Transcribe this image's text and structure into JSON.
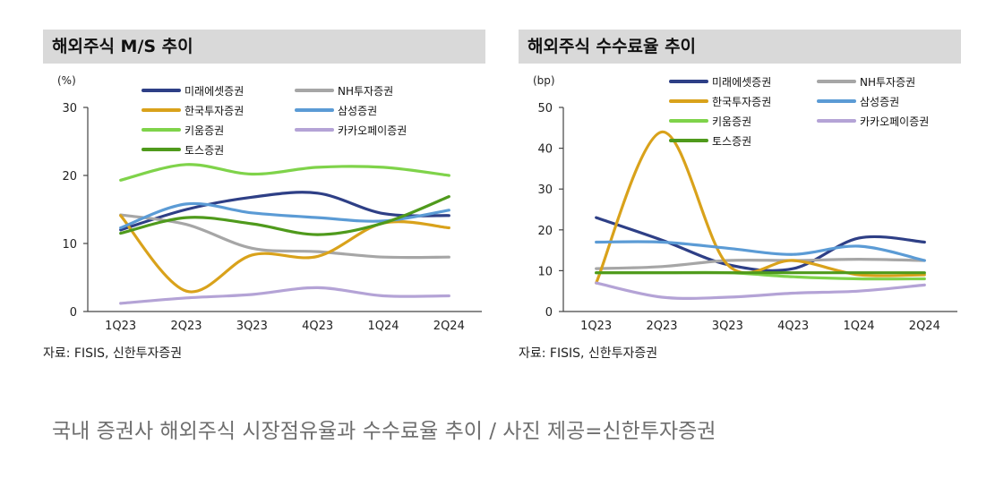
{
  "caption": "국내 증권사 해외주식 시장점유율과 수수료율 추이 / 사진 제공=신한투자증권",
  "chart_data": [
    {
      "type": "line",
      "title": "해외주식 M/S 추이",
      "unit": "(%)",
      "source": "자료: FISIS, 신한투자증권",
      "categories": [
        "1Q23",
        "2Q23",
        "3Q23",
        "4Q23",
        "1Q24",
        "2Q24"
      ],
      "ylim": [
        0,
        30
      ],
      "yticks": [
        0,
        10,
        20,
        30
      ],
      "series": [
        {
          "name": "미래에셋증권",
          "color": "#2e3f86",
          "values": [
            12.0,
            15.0,
            16.8,
            17.4,
            14.4,
            14.1
          ]
        },
        {
          "name": "NH투자증권",
          "color": "#a6a6a6",
          "values": [
            14.2,
            12.8,
            9.3,
            8.8,
            8.0,
            8.0
          ]
        },
        {
          "name": "한국투자증권",
          "color": "#d9a21b",
          "values": [
            14.1,
            3.0,
            8.3,
            8.1,
            13.0,
            12.3
          ]
        },
        {
          "name": "삼성증권",
          "color": "#5b9bd5",
          "values": [
            12.3,
            15.8,
            14.5,
            13.8,
            13.3,
            14.9
          ]
        },
        {
          "name": "키움증권",
          "color": "#7fd34a",
          "values": [
            19.3,
            21.6,
            20.2,
            21.2,
            21.2,
            20.0
          ]
        },
        {
          "name": "카카오페이증권",
          "color": "#b4a3d6",
          "values": [
            1.2,
            2.0,
            2.5,
            3.5,
            2.3,
            2.3
          ]
        },
        {
          "name": "토스증권",
          "color": "#4f9a1c",
          "values": [
            11.5,
            13.8,
            12.9,
            11.3,
            13.0,
            16.9
          ]
        }
      ]
    },
    {
      "type": "line",
      "title": "해외주식 수수료율 추이",
      "unit": "(bp)",
      "source": "자료: FISIS, 신한투자증권",
      "categories": [
        "1Q23",
        "2Q23",
        "3Q23",
        "4Q23",
        "1Q24",
        "2Q24"
      ],
      "ylim": [
        0,
        50
      ],
      "yticks": [
        0,
        10,
        20,
        30,
        40,
        50
      ],
      "series": [
        {
          "name": "미래에셋증권",
          "color": "#2e3f86",
          "values": [
            23.0,
            17.5,
            11.5,
            10.5,
            18.0,
            17.0
          ]
        },
        {
          "name": "NH투자증권",
          "color": "#a6a6a6",
          "values": [
            10.5,
            11.0,
            12.5,
            12.5,
            12.8,
            12.5
          ]
        },
        {
          "name": "한국투자증권",
          "color": "#d9a21b",
          "values": [
            7.0,
            44.0,
            11.5,
            12.5,
            9.0,
            9.0
          ]
        },
        {
          "name": "삼성증권",
          "color": "#5b9bd5",
          "values": [
            17.0,
            17.0,
            15.5,
            14.0,
            16.0,
            12.5
          ]
        },
        {
          "name": "키움증권",
          "color": "#7fd34a",
          "values": [
            9.5,
            9.5,
            9.5,
            8.5,
            8.0,
            8.0
          ]
        },
        {
          "name": "카카오페이증권",
          "color": "#b4a3d6",
          "values": [
            7.0,
            3.5,
            3.5,
            4.5,
            5.0,
            6.5
          ]
        },
        {
          "name": "토스증권",
          "color": "#4f9a1c",
          "values": [
            9.5,
            9.5,
            9.5,
            9.5,
            9.5,
            9.5
          ]
        }
      ]
    }
  ]
}
